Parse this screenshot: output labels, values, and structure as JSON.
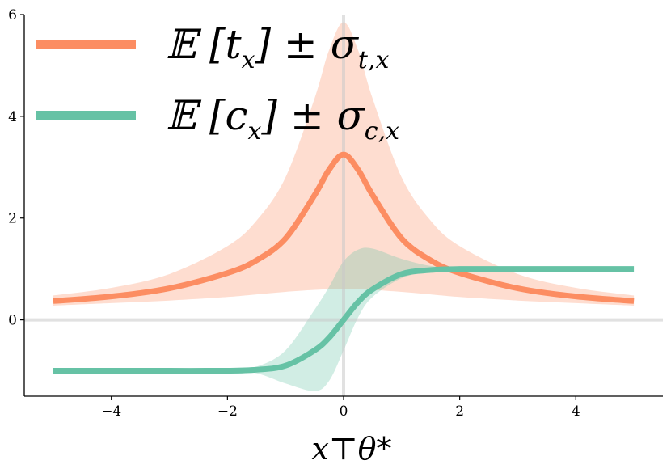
{
  "chart_data": {
    "type": "line",
    "xlabel": "x⊤θ*",
    "ylabel": "",
    "title": "",
    "xlim": [
      -5.5,
      5.5
    ],
    "ylim": [
      -1.5,
      6
    ],
    "x_ticks": [
      -4,
      -2,
      0,
      2,
      4
    ],
    "x_tick_labels": [
      "−4",
      "−2",
      "0",
      "2",
      "4"
    ],
    "y_ticks": [
      0,
      2,
      4,
      6
    ],
    "y_tick_labels": [
      "0",
      "2",
      "4",
      "6"
    ],
    "grid": false,
    "reference_lines": {
      "vertical_x": 0,
      "horizontal_y": 0
    },
    "legend_placement": "top-left",
    "series": [
      {
        "name": "𝔼[tₓ] ± σₜ,ₓ",
        "legend_main": "𝔼 [t",
        "legend_sub": "x",
        "legend_tail": "] ± σ",
        "legend_sub2": "t,x",
        "color": "#fc8d62",
        "band_color": "#fc8d62",
        "x": [
          -5,
          -4,
          -3,
          -2,
          -1.5,
          -1,
          -0.5,
          -0.25,
          0,
          0.25,
          0.5,
          1,
          1.5,
          2,
          3,
          4,
          5
        ],
        "y": [
          0.37,
          0.46,
          0.62,
          0.92,
          1.17,
          1.6,
          2.45,
          2.95,
          3.25,
          2.95,
          2.45,
          1.6,
          1.17,
          0.92,
          0.62,
          0.46,
          0.37
        ],
        "lower": [
          0.28,
          0.33,
          0.38,
          0.45,
          0.5,
          0.55,
          0.59,
          0.6,
          0.6,
          0.6,
          0.59,
          0.55,
          0.5,
          0.45,
          0.38,
          0.33,
          0.28
        ],
        "upper": [
          0.48,
          0.63,
          0.9,
          1.45,
          1.95,
          2.8,
          4.35,
          5.3,
          5.85,
          5.3,
          4.35,
          2.8,
          1.95,
          1.45,
          0.9,
          0.63,
          0.48
        ]
      },
      {
        "name": "𝔼[cₓ] ± σc,ₓ",
        "legend_main": "𝔼 [c",
        "legend_sub": "x",
        "legend_tail": "] ± σ",
        "legend_sub2": "c,x",
        "color": "#66c2a5",
        "band_color": "#66c2a5",
        "x": [
          -5,
          -4,
          -3,
          -2,
          -1.5,
          -1,
          -0.5,
          -0.25,
          0,
          0.25,
          0.5,
          1,
          1.5,
          2,
          3,
          4,
          5
        ],
        "y": [
          -1,
          -1,
          -1,
          -1,
          -0.98,
          -0.9,
          -0.6,
          -0.35,
          0,
          0.35,
          0.6,
          0.9,
          0.98,
          1,
          1,
          1,
          1
        ],
        "lower": [
          -1,
          -1,
          -1,
          -1,
          -1.05,
          -1.25,
          -1.4,
          -1.2,
          -0.6,
          0.05,
          0.45,
          0.82,
          0.95,
          1,
          1,
          1,
          1
        ],
        "upper": [
          -1,
          -1,
          -1,
          -1,
          -0.92,
          -0.6,
          0.2,
          0.65,
          1.15,
          1.38,
          1.4,
          1.2,
          1.06,
          1.02,
          1,
          1,
          1
        ]
      }
    ]
  }
}
